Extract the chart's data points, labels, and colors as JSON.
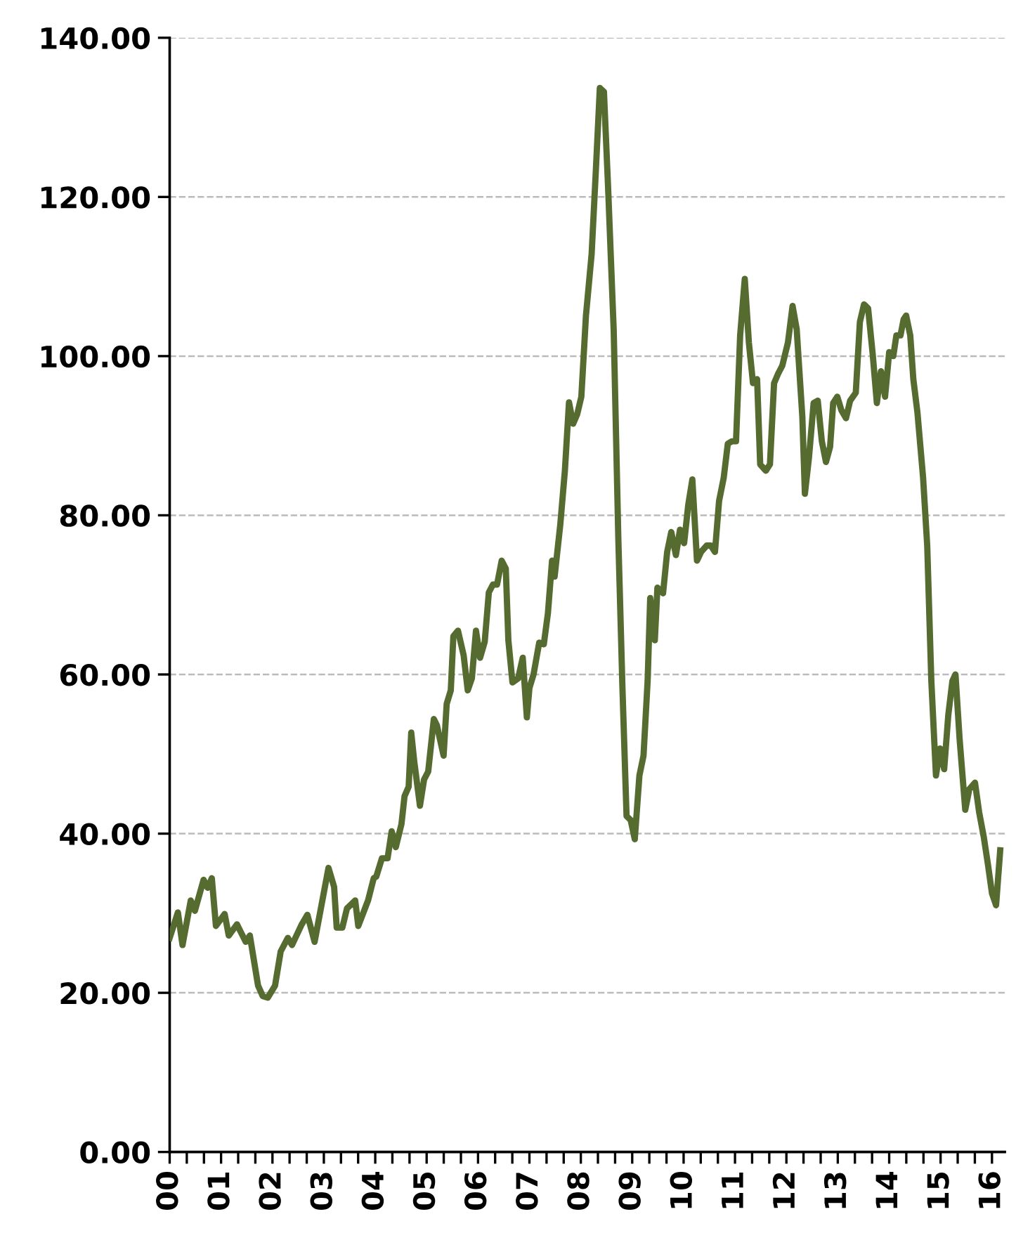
{
  "chart_data": {
    "type": "line",
    "grid": "y",
    "line_style": "solid",
    "marker": "none",
    "xlim": [
      2000,
      2016.25
    ],
    "ylim": [
      0,
      140
    ],
    "yticks": [
      {
        "value": 0,
        "label": "0.00"
      },
      {
        "value": 20,
        "label": "20.00"
      },
      {
        "value": 40,
        "label": "40.00"
      },
      {
        "value": 60,
        "label": "60.00"
      },
      {
        "value": 80,
        "label": "80.00"
      },
      {
        "value": 100,
        "label": "100.00"
      },
      {
        "value": 120,
        "label": "120.00"
      },
      {
        "value": 140,
        "label": "140.00"
      }
    ],
    "xticks": [
      {
        "value": 2000,
        "label": "00"
      },
      {
        "value": 2000.333,
        "label": null
      },
      {
        "value": 2000.667,
        "label": null
      },
      {
        "value": 2001,
        "label": "01"
      },
      {
        "value": 2001.333,
        "label": null
      },
      {
        "value": 2001.667,
        "label": null
      },
      {
        "value": 2002,
        "label": "02"
      },
      {
        "value": 2002.333,
        "label": null
      },
      {
        "value": 2002.667,
        "label": null
      },
      {
        "value": 2003,
        "label": "03"
      },
      {
        "value": 2003.333,
        "label": null
      },
      {
        "value": 2003.667,
        "label": null
      },
      {
        "value": 2004,
        "label": "04"
      },
      {
        "value": 2004.333,
        "label": null
      },
      {
        "value": 2004.667,
        "label": null
      },
      {
        "value": 2005,
        "label": "05"
      },
      {
        "value": 2005.333,
        "label": null
      },
      {
        "value": 2005.667,
        "label": null
      },
      {
        "value": 2006,
        "label": "06"
      },
      {
        "value": 2006.333,
        "label": null
      },
      {
        "value": 2006.667,
        "label": null
      },
      {
        "value": 2007,
        "label": "07"
      },
      {
        "value": 2007.333,
        "label": null
      },
      {
        "value": 2007.667,
        "label": null
      },
      {
        "value": 2008,
        "label": "08"
      },
      {
        "value": 2008.333,
        "label": null
      },
      {
        "value": 2008.667,
        "label": null
      },
      {
        "value": 2009,
        "label": "09"
      },
      {
        "value": 2009.333,
        "label": null
      },
      {
        "value": 2009.667,
        "label": null
      },
      {
        "value": 2010,
        "label": "10"
      },
      {
        "value": 2010.333,
        "label": null
      },
      {
        "value": 2010.667,
        "label": null
      },
      {
        "value": 2011,
        "label": "11"
      },
      {
        "value": 2011.333,
        "label": null
      },
      {
        "value": 2011.667,
        "label": null
      },
      {
        "value": 2012,
        "label": "12"
      },
      {
        "value": 2012.333,
        "label": null
      },
      {
        "value": 2012.667,
        "label": null
      },
      {
        "value": 2013,
        "label": "13"
      },
      {
        "value": 2013.333,
        "label": null
      },
      {
        "value": 2013.667,
        "label": null
      },
      {
        "value": 2014,
        "label": "14"
      },
      {
        "value": 2014.333,
        "label": null
      },
      {
        "value": 2014.667,
        "label": null
      },
      {
        "value": 2015,
        "label": "15"
      },
      {
        "value": 2015.333,
        "label": null
      },
      {
        "value": 2015.667,
        "label": null
      },
      {
        "value": 2016,
        "label": "16"
      }
    ],
    "series": [
      {
        "color": "#556b2f",
        "x": [
          2000,
          2000.16,
          2000.25,
          2000.41,
          2000.49,
          2000.66,
          2000.74,
          2000.82,
          2000.9,
          2001.07,
          2001.15,
          2001.31,
          2001.48,
          2001.56,
          2001.72,
          2001.81,
          2001.91,
          2002.05,
          2002.16,
          2002.3,
          2002.38,
          2002.57,
          2002.68,
          2002.82,
          2003.09,
          2003.2,
          2003.25,
          2003.36,
          2003.45,
          2003.61,
          2003.67,
          2003.86,
          2003.97,
          2004.02,
          2004.13,
          2004.24,
          2004.32,
          2004.4,
          2004.51,
          2004.57,
          2004.65,
          2004.7,
          2004.76,
          2004.87,
          2004.95,
          2005.03,
          2005.14,
          2005.2,
          2005.33,
          2005.39,
          2005.47,
          2005.52,
          2005.61,
          2005.72,
          2005.8,
          2005.88,
          2005.96,
          2006.04,
          2006.13,
          2006.21,
          2006.29,
          2006.37,
          2006.46,
          2006.54,
          2006.59,
          2006.67,
          2006.78,
          2006.87,
          2006.95,
          2007,
          2007.08,
          2007.19,
          2007.28,
          2007.36,
          2007.44,
          2007.49,
          2007.6,
          2007.69,
          2007.77,
          2007.85,
          2007.93,
          2008.01,
          2008.1,
          2008.21,
          2008.29,
          2008.37,
          2008.45,
          2008.53,
          2008.64,
          2008.73,
          2008.81,
          2008.89,
          2008.97,
          2009.05,
          2009.14,
          2009.22,
          2009.3,
          2009.35,
          2009.44,
          2009.49,
          2009.6,
          2009.68,
          2009.76,
          2009.85,
          2009.93,
          2010.01,
          2010.09,
          2010.17,
          2010.26,
          2010.34,
          2010.45,
          2010.53,
          2010.61,
          2010.69,
          2010.78,
          2010.86,
          2010.94,
          2011.02,
          2011.1,
          2011.19,
          2011.27,
          2011.35,
          2011.43,
          2011.49,
          2011.6,
          2011.68,
          2011.76,
          2011.84,
          2011.92,
          2012.03,
          2012.12,
          2012.2,
          2012.31,
          2012.36,
          2012.44,
          2012.53,
          2012.61,
          2012.69,
          2012.77,
          2012.85,
          2012.91,
          2012.99,
          2013.07,
          2013.16,
          2013.24,
          2013.35,
          2013.43,
          2013.51,
          2013.59,
          2013.68,
          2013.76,
          2013.84,
          2013.92,
          2014,
          2014.08,
          2014.14,
          2014.22,
          2014.28,
          2014.33,
          2014.41,
          2014.47,
          2014.55,
          2014.66,
          2014.74,
          2014.82,
          2014.91,
          2014.99,
          2015.07,
          2015.15,
          2015.23,
          2015.29,
          2015.37,
          2015.48,
          2015.56,
          2015.67,
          2015.75,
          2015.84,
          2015.92,
          2016,
          2016.08,
          2016.16
        ],
        "values": [
          26.9,
          30.1,
          26,
          31.6,
          30.3,
          34.2,
          33.2,
          34.4,
          28.4,
          29.9,
          27.2,
          28.6,
          26.4,
          27.2,
          20.9,
          19.6,
          19.4,
          20.9,
          25.2,
          26.9,
          26,
          28.6,
          29.8,
          26.4,
          35.7,
          33.3,
          28.2,
          28.2,
          30.6,
          31.6,
          28.4,
          31.6,
          34.4,
          34.6,
          36.9,
          36.9,
          40.3,
          38.3,
          41.2,
          44.7,
          45.9,
          52.7,
          49,
          43.5,
          46.8,
          47.8,
          54.4,
          53.6,
          49.8,
          56.3,
          58,
          64.8,
          65.5,
          62.4,
          58,
          59.5,
          65.5,
          62.1,
          64.1,
          70.3,
          71.3,
          71.3,
          74.3,
          73.3,
          64.3,
          59,
          59.5,
          62.1,
          54.6,
          58.3,
          60,
          64,
          63.8,
          67.7,
          74.3,
          72.3,
          78.8,
          85.6,
          94.2,
          91.5,
          92.7,
          94.9,
          105.1,
          112.8,
          123,
          133.7,
          133.2,
          121.3,
          103.2,
          77,
          58.3,
          42.2,
          41.7,
          39.3,
          47.3,
          49.8,
          59.2,
          69.6,
          64.3,
          70.9,
          70.2,
          75.4,
          77.9,
          75,
          78.2,
          76.5,
          81.3,
          84.5,
          74.3,
          75.4,
          76.2,
          76.2,
          75.4,
          81.8,
          84.7,
          89,
          89.3,
          89.3,
          102.6,
          109.7,
          101.7,
          96.6,
          97.1,
          86.4,
          85.6,
          86.4,
          96.6,
          97.8,
          98.8,
          101.7,
          106.3,
          103.4,
          92.4,
          82.7,
          87.3,
          94.1,
          94.4,
          89.3,
          86.7,
          88.6,
          94.1,
          94.9,
          93.2,
          92.2,
          94.4,
          95.4,
          104.3,
          106.5,
          106,
          100.2,
          94.1,
          98.1,
          94.9,
          100.5,
          100,
          102.6,
          102.6,
          104.6,
          105.1,
          102.6,
          97.1,
          92.9,
          84.7,
          76.2,
          59.2,
          47.3,
          50.7,
          48.1,
          54.9,
          59.2,
          60,
          51.9,
          43,
          45.6,
          46.4,
          42.7,
          39.6,
          36.2,
          32.5,
          31,
          37.9
        ]
      }
    ]
  }
}
